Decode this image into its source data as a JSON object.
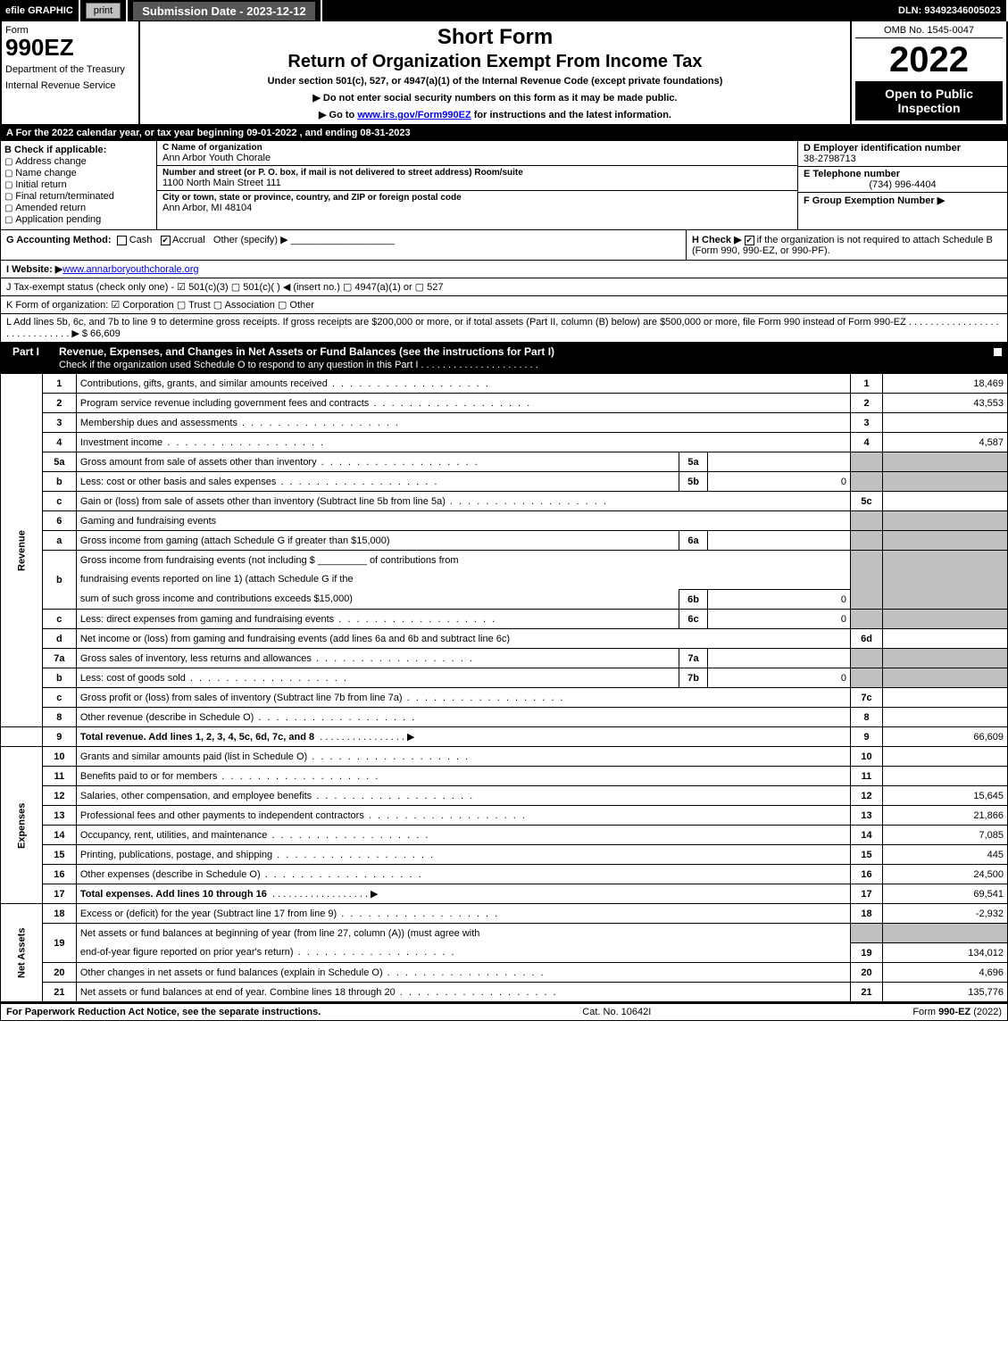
{
  "topbar": {
    "efile": "efile GRAPHIC",
    "print": "print",
    "submission": "Submission Date - 2023-12-12",
    "dln": "DLN: 93492346005023"
  },
  "head": {
    "form_word": "Form",
    "form_num": "990EZ",
    "dept": "Department of the Treasury",
    "irs": "Internal Revenue Service",
    "title1": "Short Form",
    "title2": "Return of Organization Exempt From Income Tax",
    "subtitle": "Under section 501(c), 527, or 4947(a)(1) of the Internal Revenue Code (except private foundations)",
    "arrow1": "▶ Do not enter social security numbers on this form as it may be made public.",
    "arrow2_pre": "▶ Go to ",
    "arrow2_link": "www.irs.gov/Form990EZ",
    "arrow2_post": " for instructions and the latest information.",
    "omb": "OMB No. 1545-0047",
    "year": "2022",
    "badge": "Open to Public Inspection"
  },
  "rowA": "A  For the 2022 calendar year, or tax year beginning 09-01-2022 , and ending 08-31-2023",
  "blockB": {
    "title": "B  Check if applicable:",
    "items": [
      "Address change",
      "Name change",
      "Initial return",
      "Final return/terminated",
      "Amended return",
      "Application pending"
    ]
  },
  "blockC": {
    "name_lbl": "C Name of organization",
    "name": "Ann Arbor Youth Chorale",
    "street_lbl": "Number and street (or P. O. box, if mail is not delivered to street address)       Room/suite",
    "street": "1100 North Main Street 111",
    "city_lbl": "City or town, state or province, country, and ZIP or foreign postal code",
    "city": "Ann Arbor, MI  48104"
  },
  "blockDEF": {
    "d_lbl": "D Employer identification number",
    "d": "38-2798713",
    "e_lbl": "E Telephone number",
    "e": "(734) 996-4404",
    "f_lbl": "F Group Exemption Number   ▶",
    "f": ""
  },
  "rowG": {
    "left_lbl": "G Accounting Method:",
    "cash": "Cash",
    "accrual": "Accrual",
    "other": "Other (specify) ▶",
    "h": "H  Check ▶",
    "h_txt": " if the organization is not required to attach Schedule B (Form 990, 990-EZ, or 990-PF)."
  },
  "rowI": {
    "lbl": "I Website: ▶",
    "val": "www.annarboryouthchorale.org"
  },
  "rowJ": "J Tax-exempt status (check only one) - ☑ 501(c)(3)  ▢ 501(c)(  ) ◀ (insert no.)  ▢ 4947(a)(1) or  ▢ 527",
  "rowK": "K Form of organization:   ☑ Corporation   ▢ Trust   ▢ Association   ▢ Other",
  "rowL": {
    "text": "L Add lines 5b, 6c, and 7b to line 9 to determine gross receipts. If gross receipts are $200,000 or more, or if total assets (Part II, column (B) below) are $500,000 or more, file Form 990 instead of Form 990-EZ  .  .  .  .  .  .  .  .  .  .  .  .  .  .  .  .  .  .  .  .  .  .  .  .  .  .  .  .  .  ▶ $",
    "val": "66,609"
  },
  "part1": {
    "label": "Part I",
    "title": "Revenue, Expenses, and Changes in Net Assets or Fund Balances (see the instructions for Part I)",
    "check_line": "Check if the organization used Schedule O to respond to any question in this Part I  .  .  .  .  .  .  .  .  .  .  .  .  .  .  .  .  .  .  .  .  .  ."
  },
  "sections": {
    "revenue": "Revenue",
    "expenses": "Expenses",
    "netassets": "Net Assets"
  },
  "lines": {
    "1": {
      "desc": "Contributions, gifts, grants, and similar amounts received",
      "val": "18,469"
    },
    "2": {
      "desc": "Program service revenue including government fees and contracts",
      "val": "43,553"
    },
    "3": {
      "desc": "Membership dues and assessments",
      "val": ""
    },
    "4": {
      "desc": "Investment income",
      "val": "4,587"
    },
    "5a": {
      "desc": "Gross amount from sale of assets other than inventory",
      "sub": "5a",
      "subval": ""
    },
    "5b": {
      "desc": "Less: cost or other basis and sales expenses",
      "sub": "5b",
      "subval": "0"
    },
    "5c": {
      "desc": "Gain or (loss) from sale of assets other than inventory (Subtract line 5b from line 5a)",
      "val": ""
    },
    "6": {
      "desc": "Gaming and fundraising events"
    },
    "6a": {
      "desc": "Gross income from gaming (attach Schedule G if greater than $15,000)",
      "sub": "6a",
      "subval": ""
    },
    "6b": {
      "desc_pre": "Gross income from fundraising events (not including $",
      "desc_mid": "of contributions from",
      "desc2": "fundraising events reported on line 1) (attach Schedule G if the",
      "desc3": "sum of such gross income and contributions exceeds $15,000)",
      "sub": "6b",
      "subval": "0"
    },
    "6c": {
      "desc": "Less: direct expenses from gaming and fundraising events",
      "sub": "6c",
      "subval": "0"
    },
    "6d": {
      "desc": "Net income or (loss) from gaming and fundraising events (add lines 6a and 6b and subtract line 6c)",
      "val": ""
    },
    "7a": {
      "desc": "Gross sales of inventory, less returns and allowances",
      "sub": "7a",
      "subval": ""
    },
    "7b": {
      "desc": "Less: cost of goods sold",
      "sub": "7b",
      "subval": "0"
    },
    "7c": {
      "desc": "Gross profit or (loss) from sales of inventory (Subtract line 7b from line 7a)",
      "val": ""
    },
    "8": {
      "desc": "Other revenue (describe in Schedule O)",
      "val": ""
    },
    "9": {
      "desc": "Total revenue. Add lines 1, 2, 3, 4, 5c, 6d, 7c, and 8",
      "val": "66,609"
    },
    "10": {
      "desc": "Grants and similar amounts paid (list in Schedule O)",
      "val": ""
    },
    "11": {
      "desc": "Benefits paid to or for members",
      "val": ""
    },
    "12": {
      "desc": "Salaries, other compensation, and employee benefits",
      "val": "15,645"
    },
    "13": {
      "desc": "Professional fees and other payments to independent contractors",
      "val": "21,866"
    },
    "14": {
      "desc": "Occupancy, rent, utilities, and maintenance",
      "val": "7,085"
    },
    "15": {
      "desc": "Printing, publications, postage, and shipping",
      "val": "445"
    },
    "16": {
      "desc": "Other expenses (describe in Schedule O)",
      "val": "24,500"
    },
    "17": {
      "desc": "Total expenses. Add lines 10 through 16",
      "val": "69,541"
    },
    "18": {
      "desc": "Excess or (deficit) for the year (Subtract line 17 from line 9)",
      "val": "-2,932"
    },
    "19": {
      "desc": "Net assets or fund balances at beginning of year (from line 27, column (A)) (must agree with",
      "desc2": "end-of-year figure reported on prior year's return)",
      "val": "134,012"
    },
    "20": {
      "desc": "Other changes in net assets or fund balances (explain in Schedule O)",
      "val": "4,696"
    },
    "21": {
      "desc": "Net assets or fund balances at end of year. Combine lines 18 through 20",
      "val": "135,776"
    }
  },
  "footer": {
    "left": "For Paperwork Reduction Act Notice, see the separate instructions.",
    "mid": "Cat. No. 10642I",
    "right_pre": "Form ",
    "right_bold": "990-EZ",
    "right_post": " (2022)"
  }
}
